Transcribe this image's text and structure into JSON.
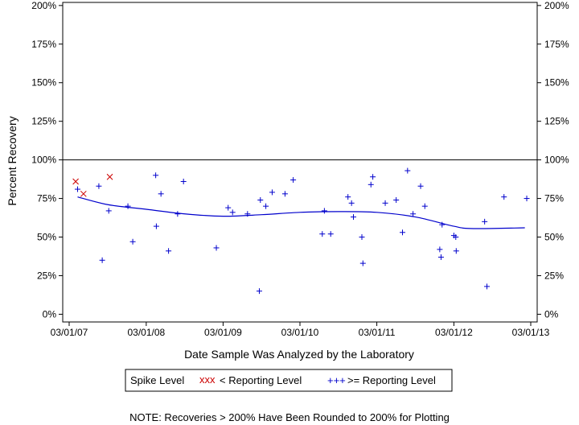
{
  "chart_data": {
    "type": "scatter",
    "title": "",
    "xlabel": "Date Sample Was Analyzed by the Laboratory",
    "ylabel": "Percent Recovery",
    "xlim": [
      "2007-03-01",
      "2013-03-01"
    ],
    "ylim": [
      -5,
      202
    ],
    "x_ticks": [
      "03/01/07",
      "03/01/08",
      "03/01/09",
      "03/01/10",
      "03/01/11",
      "03/01/12",
      "03/01/13"
    ],
    "y_ticks": [
      "0%",
      "25%",
      "50%",
      "75%",
      "100%",
      "125%",
      "150%",
      "175%",
      "200%"
    ],
    "y_tick_values": [
      0,
      25,
      50,
      75,
      100,
      125,
      150,
      175,
      200
    ],
    "reference_line": 100,
    "grid": false,
    "legend": {
      "title": "Spike Level",
      "placement": "bottom-center",
      "entries": [
        {
          "label": "< Reporting Level",
          "marker": "xxx",
          "color": "#cc0000"
        },
        {
          "label": ">= Reporting Level",
          "marker": "+++",
          "color": "#0000cc"
        }
      ]
    },
    "note": "NOTE: Recoveries > 200% Have Been Rounded to 200% for Plotting",
    "series": [
      {
        "name": "< Reporting Level",
        "marker": "x",
        "color": "#cc0000",
        "points": [
          [
            "2007-04-01",
            86
          ],
          [
            "2007-05-08",
            78
          ],
          [
            "2007-09-10",
            89
          ]
        ]
      },
      {
        "name": ">= Reporting Level",
        "marker": "+",
        "color": "#0000cc",
        "points": [
          [
            "2007-04-10",
            81
          ],
          [
            "2007-07-20",
            83
          ],
          [
            "2007-08-05",
            35
          ],
          [
            "2007-09-05",
            67
          ],
          [
            "2007-12-05",
            70
          ],
          [
            "2007-12-28",
            47
          ],
          [
            "2008-04-15",
            90
          ],
          [
            "2008-04-18",
            57
          ],
          [
            "2008-05-10",
            78
          ],
          [
            "2008-06-15",
            41
          ],
          [
            "2008-07-28",
            65
          ],
          [
            "2008-08-25",
            86
          ],
          [
            "2009-01-28",
            43
          ],
          [
            "2009-03-25",
            69
          ],
          [
            "2009-04-15",
            66
          ],
          [
            "2009-06-25",
            65
          ],
          [
            "2009-08-20",
            15
          ],
          [
            "2009-08-25",
            74
          ],
          [
            "2009-09-20",
            70
          ],
          [
            "2009-10-20",
            79
          ],
          [
            "2009-12-20",
            78
          ],
          [
            "2010-01-28",
            87
          ],
          [
            "2010-06-15",
            52
          ],
          [
            "2010-06-25",
            67
          ],
          [
            "2010-07-25",
            52
          ],
          [
            "2010-10-15",
            76
          ],
          [
            "2010-11-01",
            72
          ],
          [
            "2010-11-10",
            63
          ],
          [
            "2010-12-20",
            50
          ],
          [
            "2010-12-25",
            33
          ],
          [
            "2011-02-01",
            84
          ],
          [
            "2011-02-10",
            89
          ],
          [
            "2011-04-10",
            72
          ],
          [
            "2011-06-01",
            74
          ],
          [
            "2011-07-01",
            53
          ],
          [
            "2011-07-25",
            93
          ],
          [
            "2011-08-20",
            65
          ],
          [
            "2011-09-25",
            83
          ],
          [
            "2011-10-15",
            70
          ],
          [
            "2011-12-25",
            42
          ],
          [
            "2011-12-31",
            37
          ],
          [
            "2012-01-05",
            58
          ],
          [
            "2012-03-01",
            51
          ],
          [
            "2012-03-10",
            50
          ],
          [
            "2012-03-12",
            41
          ],
          [
            "2012-07-25",
            60
          ],
          [
            "2012-08-05",
            18
          ],
          [
            "2012-10-25",
            76
          ],
          [
            "2013-02-10",
            75
          ]
        ]
      }
    ],
    "trend_line": {
      "color": "#0000cc",
      "points": [
        [
          "2007-04-10",
          76
        ],
        [
          "2007-09-01",
          71
        ],
        [
          "2008-03-01",
          68
        ],
        [
          "2008-09-01",
          65
        ],
        [
          "2009-03-01",
          63.5
        ],
        [
          "2009-09-01",
          64.5
        ],
        [
          "2010-03-01",
          66
        ],
        [
          "2010-09-01",
          66.5
        ],
        [
          "2011-03-01",
          66
        ],
        [
          "2011-09-01",
          63
        ],
        [
          "2012-03-01",
          57
        ],
        [
          "2012-06-01",
          55.5
        ],
        [
          "2013-02-01",
          56
        ]
      ]
    }
  }
}
